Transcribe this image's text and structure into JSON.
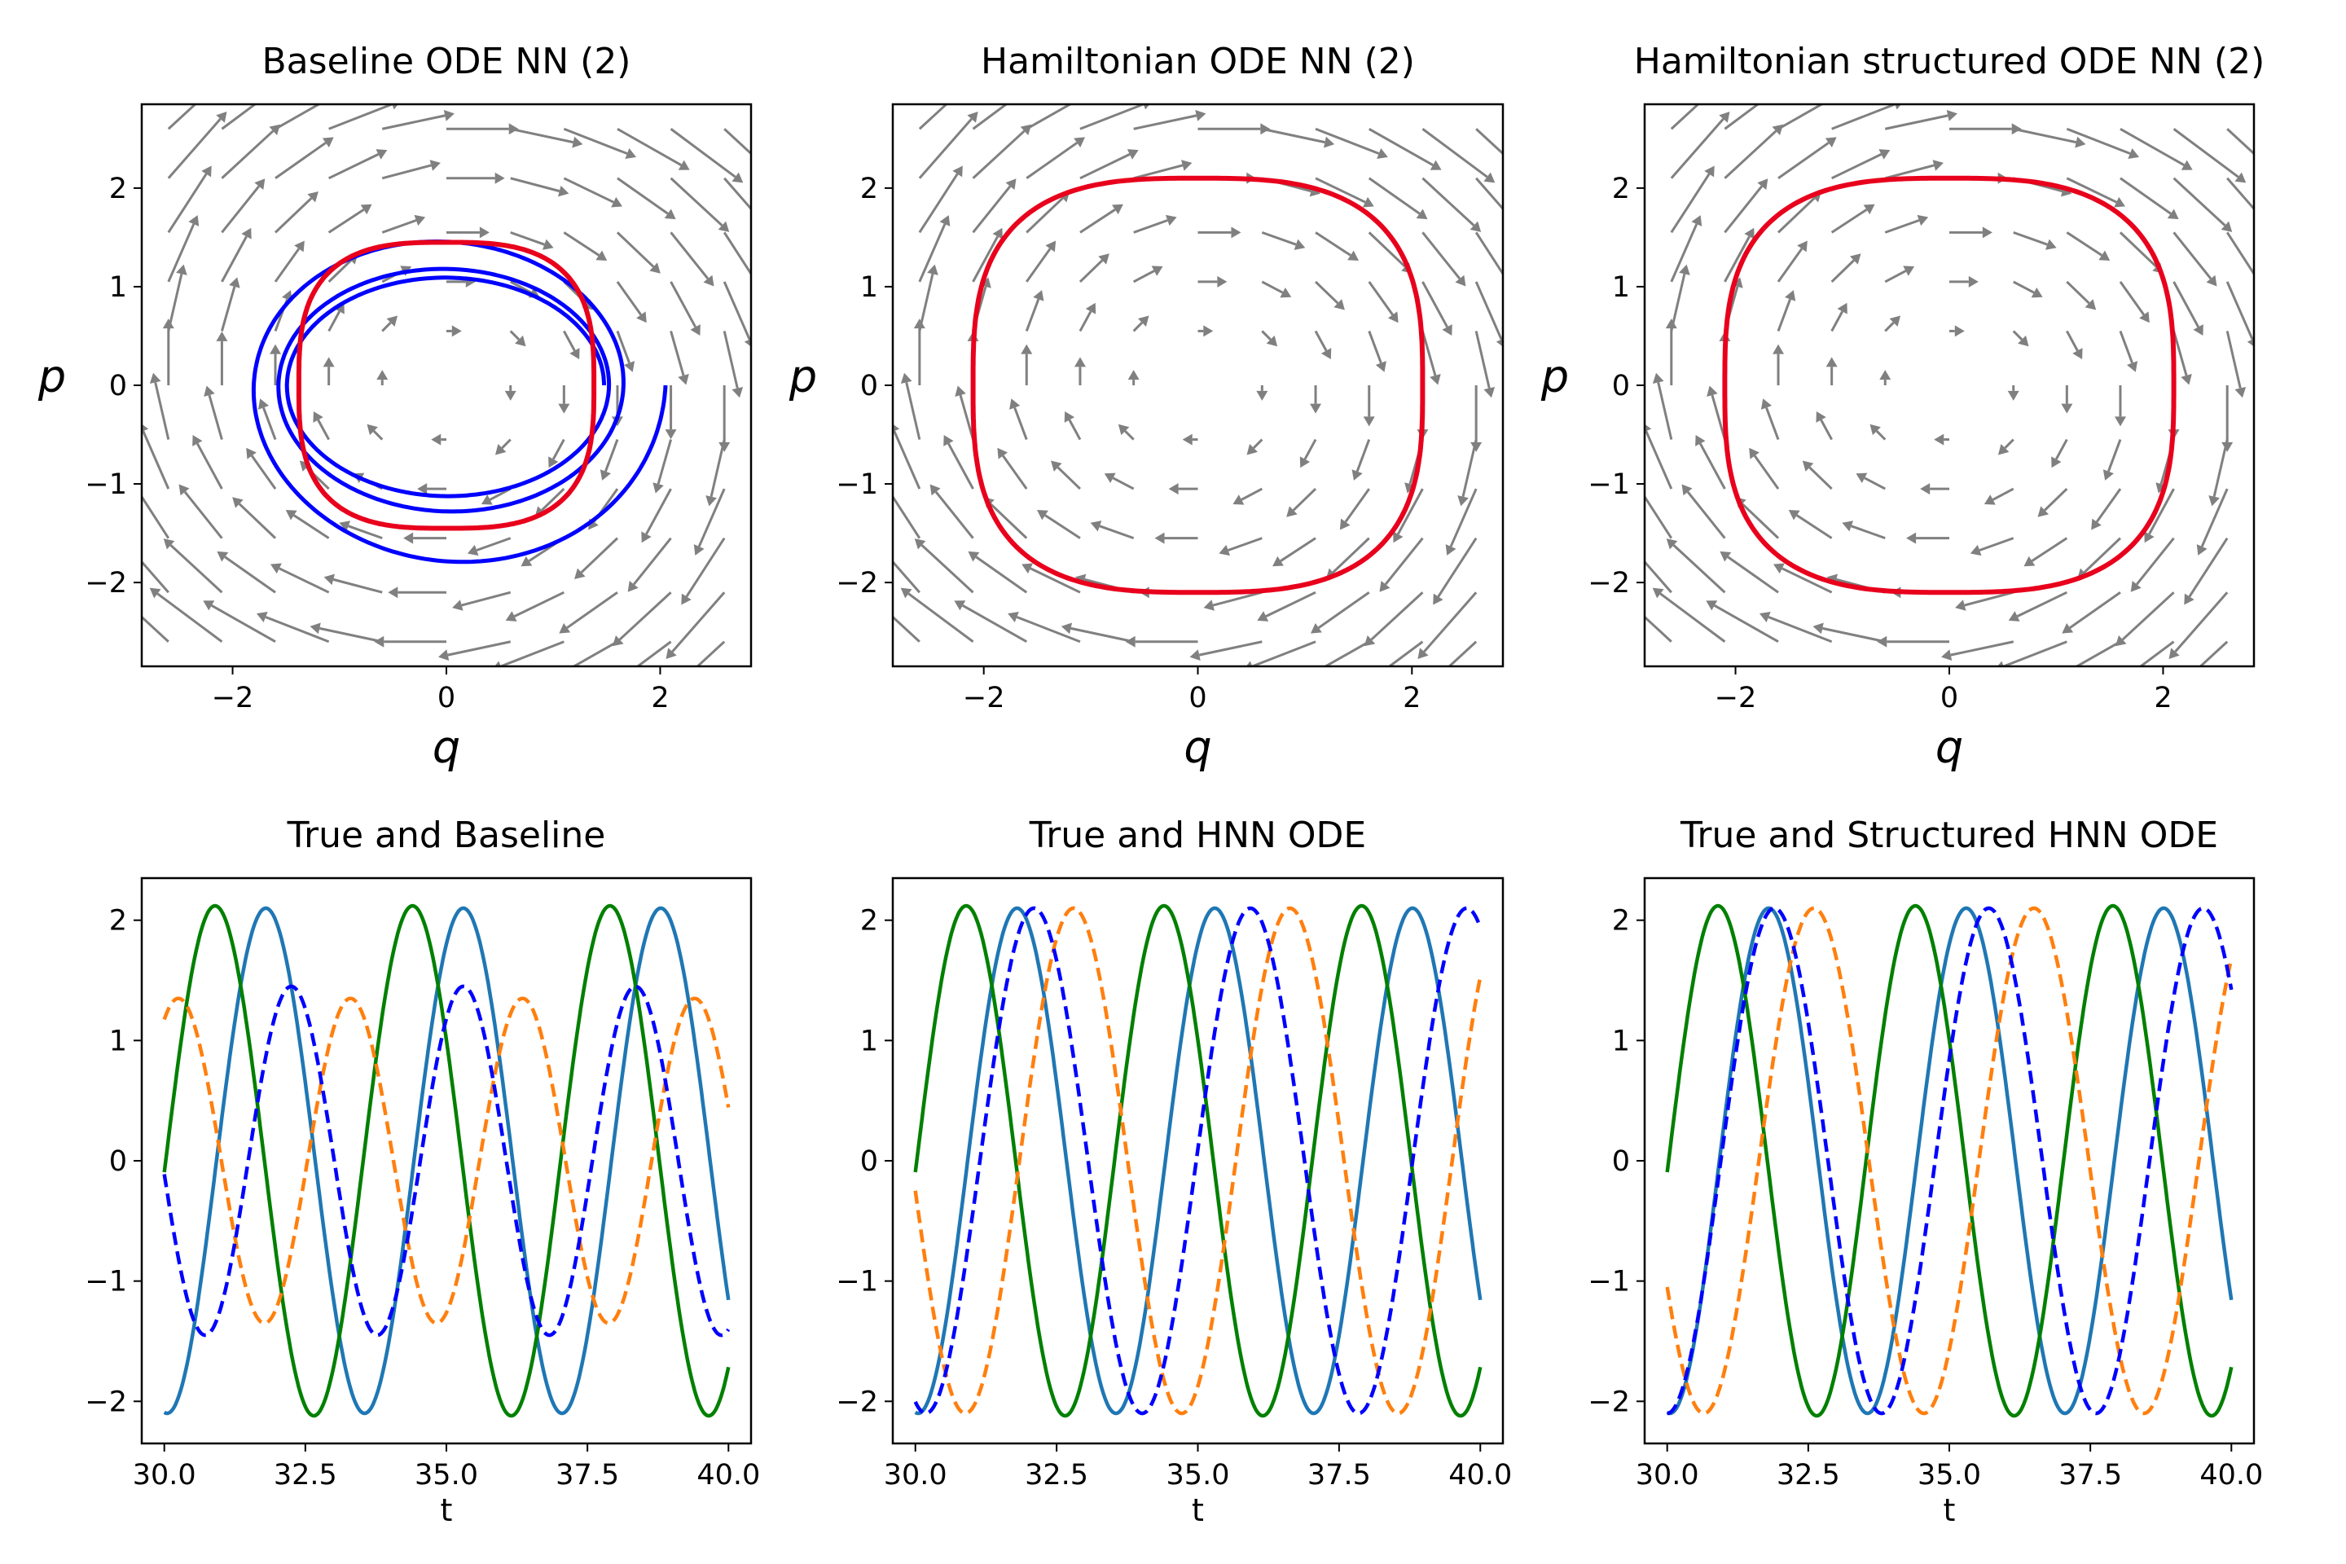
{
  "chart_data": [
    {
      "type": "line",
      "title": "Baseline ODE NN (2)",
      "xlabel": "q",
      "ylabel": "p",
      "xlim": [
        -2.85,
        2.85
      ],
      "ylim": [
        -2.85,
        2.85
      ],
      "xticks": [
        -2,
        0,
        2
      ],
      "yticks": [
        -2,
        -1,
        0,
        1,
        2
      ],
      "tick_labels_x": [
        "−2",
        "0",
        "2"
      ],
      "tick_labels_y": [
        "−2",
        "−1",
        "0",
        "1",
        "2"
      ],
      "vector_field": "rotation (dq/dt = p, dp/dt = −q), grey arrows on grid",
      "series": [
        {
          "color": "#0000ff",
          "style": "solid",
          "kind": "spiral",
          "start": [
            2.1,
            0.0
          ],
          "end_radius": 1.45,
          "turns": 3
        },
        {
          "color": "#e8001c",
          "style": "solid",
          "kind": "closed orbit",
          "radius_q": 1.38,
          "radius_p": 1.45
        }
      ],
      "grid": false
    },
    {
      "type": "line",
      "title": "Hamiltonian ODE NN (2)",
      "xlabel": "q",
      "ylabel": "p",
      "xlim": [
        -2.85,
        2.85
      ],
      "ylim": [
        -2.85,
        2.85
      ],
      "xticks": [
        -2,
        0,
        2
      ],
      "yticks": [
        -2,
        -1,
        0,
        1,
        2
      ],
      "tick_labels_x": [
        "−2",
        "0",
        "2"
      ],
      "tick_labels_y": [
        "−2",
        "−1",
        "0",
        "1",
        "2"
      ],
      "series": [
        {
          "color": "#e8001c",
          "style": "solid",
          "kind": "closed orbit",
          "radius_q": 2.1,
          "radius_p": 2.1
        }
      ],
      "grid": false
    },
    {
      "type": "line",
      "title": "Hamiltonian structured ODE NN (2)",
      "xlabel": "q",
      "ylabel": "p",
      "xlim": [
        -2.85,
        2.85
      ],
      "ylim": [
        -2.85,
        2.85
      ],
      "xticks": [
        -2,
        0,
        2
      ],
      "yticks": [
        -2,
        -1,
        0,
        1,
        2
      ],
      "tick_labels_x": [
        "−2",
        "0",
        "2"
      ],
      "tick_labels_y": [
        "−2",
        "−1",
        "0",
        "1",
        "2"
      ],
      "series": [
        {
          "color": "#e8001c",
          "style": "solid",
          "kind": "closed orbit",
          "radius_q": 2.1,
          "radius_p": 2.1
        }
      ],
      "grid": false
    },
    {
      "type": "line",
      "title": "True and Baseline",
      "xlabel": "t",
      "ylabel": "",
      "xlim": [
        29.6,
        40.4
      ],
      "ylim": [
        -2.35,
        2.35
      ],
      "xticks": [
        30.0,
        32.5,
        35.0,
        37.5,
        40.0
      ],
      "yticks": [
        -2,
        -1,
        0,
        1,
        2
      ],
      "tick_labels_x": [
        "30.0",
        "32.5",
        "35.0",
        "37.5",
        "40.0"
      ],
      "tick_labels_y": [
        "−2",
        "−1",
        "0",
        "1",
        "2"
      ],
      "series": [
        {
          "color": "#1f77b4",
          "style": "solid",
          "amp": 2.1,
          "period": 3.5,
          "peak_t": 31.8
        },
        {
          "color": "#008000",
          "style": "solid",
          "amp": 2.12,
          "period": 3.5,
          "peak_t": 30.9
        },
        {
          "color": "#ff7f0e",
          "style": "dashed",
          "amp": 1.35,
          "period": 3.05,
          "peak_t": 30.25
        },
        {
          "color": "#0000ff",
          "style": "dashed",
          "amp": 1.45,
          "period": 3.05,
          "peak_t": 32.25
        }
      ],
      "grid": false
    },
    {
      "type": "line",
      "title": "True and HNN ODE",
      "xlabel": "t",
      "ylabel": "",
      "xlim": [
        29.6,
        40.4
      ],
      "ylim": [
        -2.35,
        2.35
      ],
      "xticks": [
        30.0,
        32.5,
        35.0,
        37.5,
        40.0
      ],
      "yticks": [
        -2,
        -1,
        0,
        1,
        2
      ],
      "tick_labels_x": [
        "30.0",
        "32.5",
        "35.0",
        "37.5",
        "40.0"
      ],
      "tick_labels_y": [
        "−2",
        "−1",
        "0",
        "1",
        "2"
      ],
      "series": [
        {
          "color": "#1f77b4",
          "style": "solid",
          "amp": 2.1,
          "period": 3.5,
          "peak_t": 31.8
        },
        {
          "color": "#008000",
          "style": "solid",
          "amp": 2.12,
          "period": 3.5,
          "peak_t": 30.9
        },
        {
          "color": "#ff7f0e",
          "style": "dashed",
          "amp": 2.1,
          "period": 3.83,
          "peak_t": 32.8
        },
        {
          "color": "#0000ff",
          "style": "dashed",
          "amp": 2.1,
          "period": 3.83,
          "peak_t": 32.1
        }
      ],
      "grid": false
    },
    {
      "type": "line",
      "title": "True and Structured HNN ODE",
      "xlabel": "t",
      "ylabel": "",
      "xlim": [
        29.6,
        40.4
      ],
      "ylim": [
        -2.35,
        2.35
      ],
      "xticks": [
        30.0,
        32.5,
        35.0,
        37.5,
        40.0
      ],
      "yticks": [
        -2,
        -1,
        0,
        1,
        2
      ],
      "tick_labels_x": [
        "30.0",
        "32.5",
        "35.0",
        "37.5",
        "40.0"
      ],
      "tick_labels_y": [
        "−2",
        "−1",
        "0",
        "1",
        "2"
      ],
      "series": [
        {
          "color": "#1f77b4",
          "style": "solid",
          "amp": 2.1,
          "period": 3.5,
          "peak_t": 31.8
        },
        {
          "color": "#008000",
          "style": "solid",
          "amp": 2.12,
          "period": 3.5,
          "peak_t": 30.9
        },
        {
          "color": "#ff7f0e",
          "style": "dashed",
          "amp": 2.1,
          "period": 3.9,
          "peak_t": 32.6
        },
        {
          "color": "#0000ff",
          "style": "dashed",
          "amp": 2.1,
          "period": 3.8,
          "peak_t": 31.9
        }
      ],
      "grid": false
    }
  ]
}
